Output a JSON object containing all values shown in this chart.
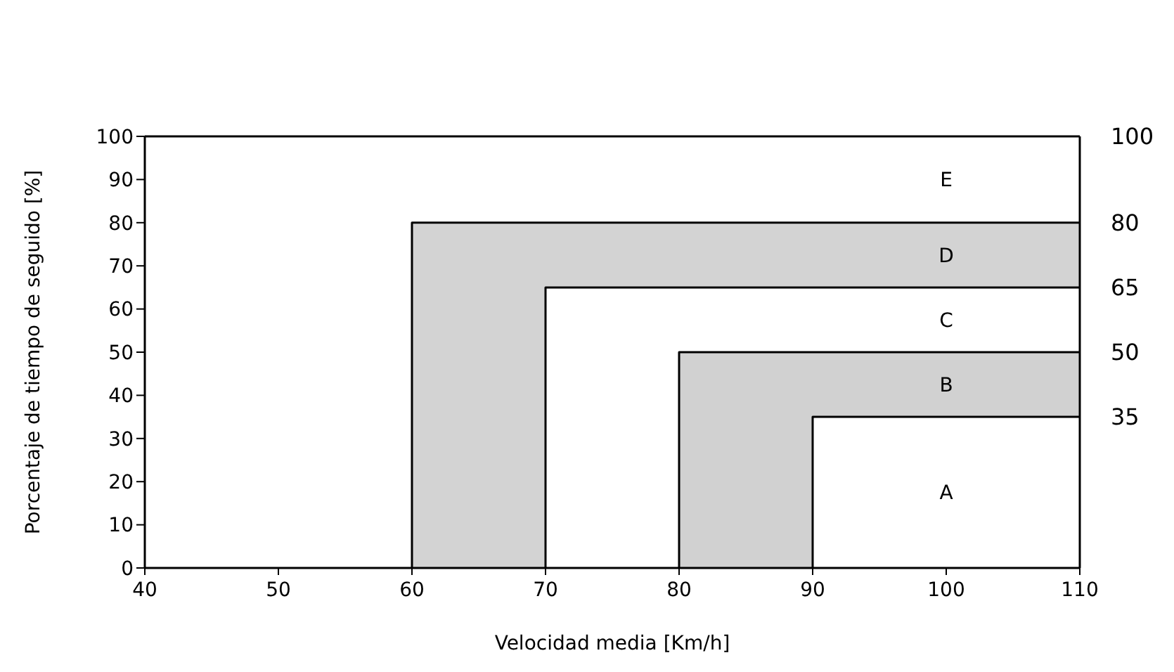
{
  "chart_data": {
    "type": "line",
    "xlabel": "Velocidad media [Km/h]",
    "ylabel": "Porcentaje de tiempo de seguido [%]",
    "xlim": [
      40,
      110
    ],
    "xticks": [
      40,
      50,
      60,
      70,
      80,
      90,
      100,
      110
    ],
    "ylim": [
      0,
      100
    ],
    "yticks": [
      0,
      10,
      20,
      30,
      40,
      50,
      60,
      70,
      80,
      90,
      100
    ],
    "y2lim": [
      0,
      100
    ],
    "y2ticks": [
      35,
      50,
      65,
      80,
      100
    ],
    "grid": false,
    "marker": "none",
    "line_style": "solid",
    "series": [
      {
        "color": "#000000",
        "x": [
          60,
          60,
          70,
          70,
          110
        ],
        "values": [
          0,
          80,
          80,
          80,
          80
        ],
        "lower": [
          0,
          0,
          0,
          65,
          65
        ],
        "upper": [
          0,
          80,
          80,
          80,
          80
        ]
      },
      {
        "color": "#000000",
        "x": [
          70,
          70,
          110
        ],
        "values": [
          0,
          65,
          65
        ]
      },
      {
        "color": "#000000",
        "x": [
          80,
          80,
          90,
          90,
          110
        ],
        "values": [
          0,
          50,
          50,
          50,
          50
        ],
        "lower": [
          0,
          0,
          0,
          35,
          35
        ],
        "upper": [
          0,
          50,
          50,
          50,
          50
        ]
      },
      {
        "color": "#000000",
        "x": [
          90,
          90,
          110
        ],
        "values": [
          0,
          35,
          35
        ]
      }
    ],
    "annotations": [
      "A",
      "B",
      "C",
      "D",
      "E"
    ]
  }
}
